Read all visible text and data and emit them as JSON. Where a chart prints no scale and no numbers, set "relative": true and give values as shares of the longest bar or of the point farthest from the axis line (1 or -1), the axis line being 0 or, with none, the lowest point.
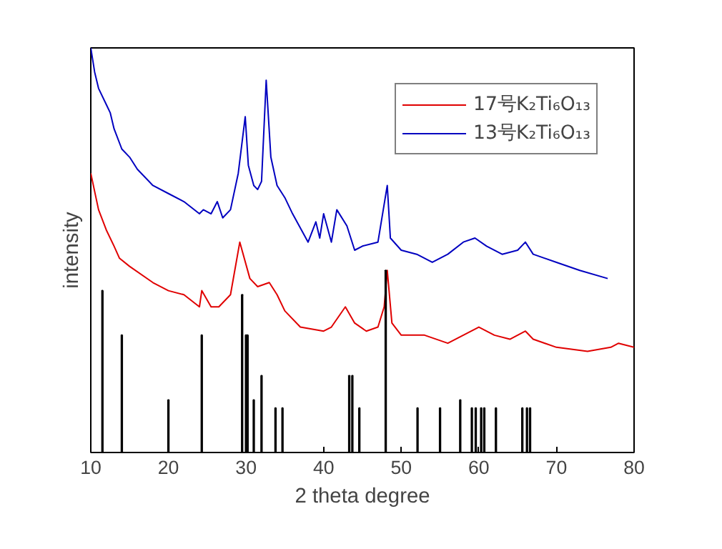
{
  "chart_data": {
    "type": "line",
    "relative": true,
    "xlabel": "2 theta degree",
    "ylabel": "intensity",
    "xlim": [
      10,
      80
    ],
    "xticks": [
      10,
      20,
      30,
      40,
      50,
      60,
      70,
      80
    ],
    "tick_labels": "x",
    "grid": false,
    "legend": "top right",
    "marker": "none",
    "line_style": "solid",
    "series": [
      {
        "name": "17号K₂Ti₆O₁₃",
        "color": "#e00000",
        "x": [
          10,
          11,
          12,
          13,
          13.7,
          15,
          18,
          20,
          22,
          24,
          24.3,
          25.5,
          26.5,
          28,
          29.2,
          30.5,
          31.5,
          33,
          34,
          35,
          37,
          40,
          41,
          42.8,
          44,
          45.5,
          47,
          47.8,
          48.2,
          48.8,
          50,
          53,
          56,
          58,
          60,
          62,
          64,
          66,
          67,
          70,
          74,
          77,
          78,
          80
        ],
        "values": [
          0.69,
          0.6,
          0.55,
          0.51,
          0.48,
          0.46,
          0.42,
          0.4,
          0.39,
          0.36,
          0.4,
          0.36,
          0.36,
          0.39,
          0.52,
          0.43,
          0.41,
          0.42,
          0.39,
          0.35,
          0.31,
          0.3,
          0.31,
          0.36,
          0.32,
          0.3,
          0.31,
          0.36,
          0.45,
          0.32,
          0.29,
          0.29,
          0.27,
          0.29,
          0.31,
          0.29,
          0.28,
          0.3,
          0.28,
          0.26,
          0.25,
          0.26,
          0.27,
          0.26
        ]
      },
      {
        "name": "13号K₂Ti₆O₁₃",
        "color": "#0000c0",
        "x": [
          10,
          10.5,
          11,
          12,
          12.5,
          13,
          14,
          15,
          16,
          18,
          20,
          22,
          24,
          24.5,
          25.5,
          26.3,
          27,
          28,
          29,
          29.9,
          30.3,
          31,
          31.5,
          32,
          32.6,
          33.2,
          34,
          35,
          36,
          38,
          39,
          39.5,
          40,
          41,
          41.7,
          43,
          44,
          45,
          47,
          48.2,
          48.6,
          50,
          52,
          54,
          56,
          58,
          59.5,
          61,
          63,
          65,
          66,
          67,
          70,
          73,
          76.6
        ],
        "values": [
          1.0,
          0.94,
          0.9,
          0.86,
          0.84,
          0.8,
          0.75,
          0.73,
          0.7,
          0.66,
          0.64,
          0.62,
          0.59,
          0.6,
          0.59,
          0.62,
          0.58,
          0.6,
          0.69,
          0.83,
          0.71,
          0.66,
          0.65,
          0.67,
          0.92,
          0.73,
          0.66,
          0.63,
          0.59,
          0.52,
          0.57,
          0.53,
          0.59,
          0.52,
          0.6,
          0.56,
          0.5,
          0.51,
          0.52,
          0.66,
          0.53,
          0.5,
          0.49,
          0.47,
          0.49,
          0.52,
          0.53,
          0.51,
          0.49,
          0.5,
          0.52,
          0.49,
          0.47,
          0.45,
          0.43
        ]
      },
      {
        "type": "bar",
        "color": "#000000",
        "x": [
          11.5,
          14,
          20,
          24.3,
          29.5,
          30,
          30.2,
          31,
          32,
          33.8,
          34.7,
          43.3,
          43.7,
          44.6,
          48,
          52.1,
          55,
          57.6,
          59.1,
          59.6,
          60.3,
          60.7,
          62.2,
          65.6,
          66.2,
          66.6
        ],
        "values": [
          0.4,
          0.29,
          0.13,
          0.29,
          0.39,
          0.29,
          0.29,
          0.13,
          0.19,
          0.11,
          0.11,
          0.19,
          0.19,
          0.11,
          0.45,
          0.11,
          0.11,
          0.13,
          0.11,
          0.11,
          0.11,
          0.11,
          0.11,
          0.11,
          0.11,
          0.11
        ]
      }
    ]
  }
}
